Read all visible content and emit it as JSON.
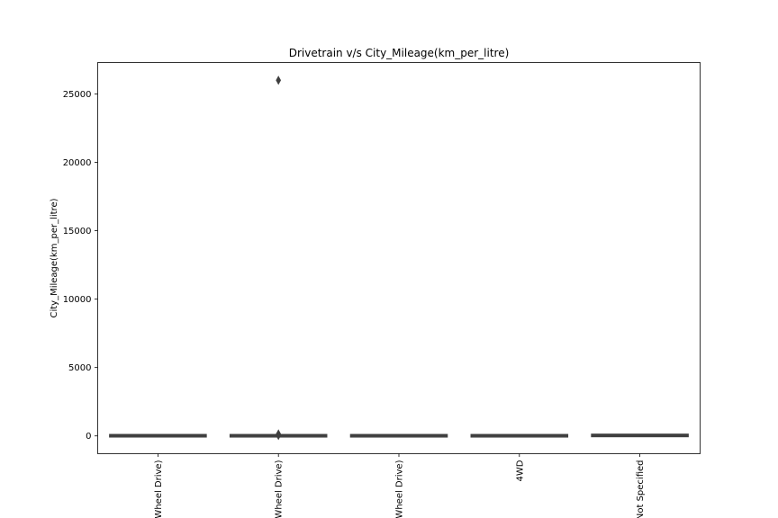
{
  "chart_data": {
    "type": "box",
    "title": "Drivetrain v/s City_Mileage(km_per_litre)",
    "xlabel": "",
    "ylabel": "City_Mileage(km_per_litre)",
    "categories": [
      "(Front Wheel Drive)",
      "(Rear Wheel Drive)",
      "(All Wheel Drive)",
      "4WD",
      "Not Specified"
    ],
    "visible_category_labels": [
      "Wheel Drive)",
      "Wheel Drive)",
      "Wheel Drive)",
      "4WD",
      "Not Specified"
    ],
    "ylim": [
      -1300,
      27300
    ],
    "yticks": [
      0,
      5000,
      10000,
      15000,
      20000,
      25000
    ],
    "box_stats": [
      {
        "min": 5,
        "q1": 10,
        "median": 13,
        "q3": 16,
        "max": 22,
        "fliers": []
      },
      {
        "min": 5,
        "q1": 9,
        "median": 11,
        "q3": 14,
        "max": 20,
        "fliers": [
          26000,
          150,
          30
        ]
      },
      {
        "min": 5,
        "q1": 9,
        "median": 11,
        "q3": 14,
        "max": 20,
        "fliers": []
      },
      {
        "min": 5,
        "q1": 9,
        "median": 11,
        "q3": 14,
        "max": 20,
        "fliers": []
      },
      {
        "min": 10,
        "q1": 20,
        "median": 30,
        "q3": 50,
        "max": 90,
        "fliers": []
      }
    ],
    "colors": {
      "box_edge": "#3f3f3f",
      "axes": "#000000",
      "background": "#ffffff"
    },
    "grid": false,
    "legend": "none"
  }
}
